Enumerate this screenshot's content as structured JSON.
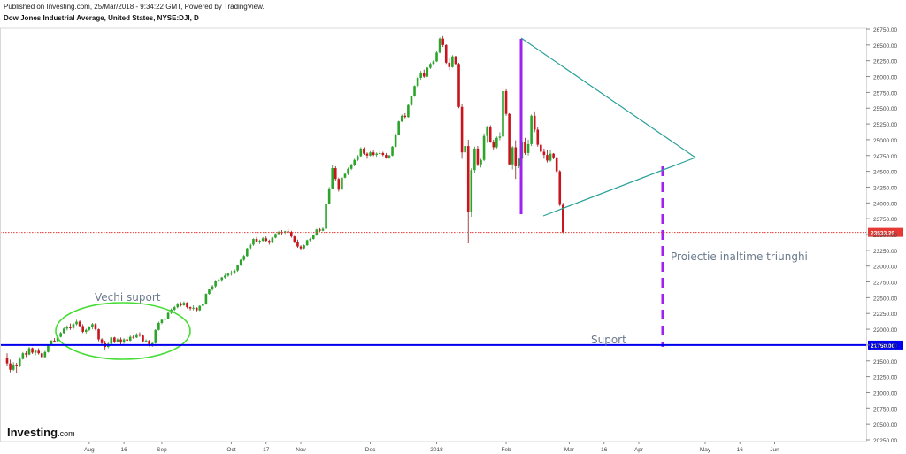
{
  "header": {
    "published": "Published on Investing.com, 25/Mar/2018 - 9:34:22 GMT, Powered by TradingView.",
    "symbol": "Dow Jones Industrial Average, United States, NYSE:DJI, D"
  },
  "logo": {
    "text": "Investing",
    "suffix": ".com"
  },
  "chart_data": {
    "type": "candlestick",
    "ylim": [
      20250,
      26750
    ],
    "y_ticks": [
      26750,
      26500,
      26250,
      26000,
      25750,
      25500,
      25250,
      25000,
      24750,
      24500,
      24250,
      24000,
      23750,
      23500,
      23250,
      23000,
      22750,
      22500,
      22250,
      22000,
      21750,
      21500,
      21250,
      21000,
      20750,
      20500,
      20250
    ],
    "y_tick_labels": [
      "26750.00",
      "26500.00",
      "26250.00",
      "26000.00",
      "25750.00",
      "25500.00",
      "25250.00",
      "25000.00",
      "24750.00",
      "24500.00",
      "24250.00",
      "24000.00",
      "23750.00",
      "23500.00",
      "23250.00",
      "23000.00",
      "22750.00",
      "22500.00",
      "22250.00",
      "22000.00",
      "21750.00",
      "21500.00",
      "21250.00",
      "21000.00",
      "20750.00",
      "20500.00",
      "20250.00"
    ],
    "x_ticks": [
      {
        "day": 26,
        "label": "Aug"
      },
      {
        "day": 37,
        "label": "16"
      },
      {
        "day": 49,
        "label": "Sep"
      },
      {
        "day": 71,
        "label": "Oct"
      },
      {
        "day": 82,
        "label": "17"
      },
      {
        "day": 93,
        "label": "Nov"
      },
      {
        "day": 115,
        "label": "Dec"
      },
      {
        "day": 136,
        "label": "2018"
      },
      {
        "day": 158,
        "label": "Feb"
      },
      {
        "day": 178,
        "label": "Mar"
      },
      {
        "day": 189,
        "label": "16"
      },
      {
        "day": 200,
        "label": "Apr"
      },
      {
        "day": 221,
        "label": "May"
      },
      {
        "day": 232,
        "label": "16"
      },
      {
        "day": 243,
        "label": "Jun"
      }
    ],
    "x_range": [
      0,
      248
    ],
    "price_lines": [
      {
        "value": 23533.29,
        "label": "23533.29",
        "color": "#e53935",
        "style": "dotted"
      },
      {
        "value": 21750.0,
        "label": "21750.00",
        "color": "#0000ee",
        "style": "solid"
      }
    ],
    "annotations": {
      "old_support": "Vechi suport",
      "support": "Suport",
      "projection": "Proiectie inaltime triunghi"
    },
    "candles": [
      [
        0,
        21550,
        21620,
        21420,
        21460
      ],
      [
        1,
        21460,
        21520,
        21320,
        21360
      ],
      [
        2,
        21360,
        21480,
        21340,
        21440
      ],
      [
        3,
        21440,
        21470,
        21300,
        21420
      ],
      [
        4,
        21420,
        21560,
        21400,
        21530
      ],
      [
        5,
        21530,
        21640,
        21520,
        21620
      ],
      [
        6,
        21620,
        21650,
        21560,
        21600
      ],
      [
        7,
        21600,
        21720,
        21590,
        21700
      ],
      [
        8,
        21700,
        21710,
        21610,
        21630
      ],
      [
        9,
        21630,
        21680,
        21590,
        21660
      ],
      [
        10,
        21660,
        21700,
        21600,
        21620
      ],
      [
        11,
        21620,
        21650,
        21540,
        21560
      ],
      [
        12,
        21560,
        21660,
        21550,
        21640
      ],
      [
        13,
        21640,
        21760,
        21630,
        21750
      ],
      [
        14,
        21750,
        21830,
        21740,
        21820
      ],
      [
        15,
        21820,
        21860,
        21790,
        21810
      ],
      [
        16,
        21810,
        21900,
        21800,
        21880
      ],
      [
        17,
        21880,
        21960,
        21870,
        21940
      ],
      [
        18,
        21940,
        22030,
        21930,
        22010
      ],
      [
        19,
        22010,
        22060,
        21980,
        22030
      ],
      [
        20,
        22030,
        22090,
        21990,
        22020
      ],
      [
        21,
        22020,
        22100,
        22000,
        22080
      ],
      [
        22,
        22080,
        22150,
        22060,
        22120
      ],
      [
        23,
        22120,
        22140,
        22030,
        22050
      ],
      [
        24,
        22050,
        22080,
        21940,
        21960
      ],
      [
        25,
        21960,
        22010,
        21930,
        21990
      ],
      [
        26,
        21990,
        22050,
        21970,
        22030
      ],
      [
        27,
        22030,
        22100,
        22000,
        22080
      ],
      [
        28,
        22080,
        22100,
        21980,
        22000
      ],
      [
        29,
        22000,
        22010,
        21810,
        21840
      ],
      [
        30,
        21840,
        21860,
        21760,
        21780
      ],
      [
        31,
        21780,
        21820,
        21680,
        21720
      ],
      [
        32,
        21720,
        21790,
        21700,
        21770
      ],
      [
        33,
        21770,
        21880,
        21760,
        21870
      ],
      [
        34,
        21870,
        21880,
        21780,
        21800
      ],
      [
        35,
        21800,
        21860,
        21790,
        21840
      ],
      [
        36,
        21840,
        21870,
        21760,
        21790
      ],
      [
        37,
        21790,
        21860,
        21770,
        21840
      ],
      [
        38,
        21840,
        21890,
        21800,
        21820
      ],
      [
        39,
        21820,
        21900,
        21810,
        21880
      ],
      [
        40,
        21880,
        21910,
        21850,
        21870
      ],
      [
        41,
        21870,
        21940,
        21860,
        21920
      ],
      [
        42,
        21920,
        21950,
        21880,
        21900
      ],
      [
        43,
        21900,
        21920,
        21790,
        21810
      ],
      [
        44,
        21810,
        21840,
        21790,
        21820
      ],
      [
        45,
        21820,
        21830,
        21730,
        21760
      ],
      [
        46,
        21760,
        21790,
        21720,
        21780
      ],
      [
        47,
        21780,
        22000,
        21770,
        21990
      ],
      [
        48,
        21990,
        22120,
        21980,
        22100
      ],
      [
        49,
        22100,
        22160,
        22080,
        22150
      ],
      [
        50,
        22150,
        22200,
        22130,
        22170
      ],
      [
        51,
        22170,
        22270,
        22160,
        22260
      ],
      [
        52,
        22260,
        22330,
        22240,
        22310
      ],
      [
        53,
        22310,
        22370,
        22290,
        22350
      ],
      [
        54,
        22350,
        22420,
        22330,
        22400
      ],
      [
        55,
        22400,
        22430,
        22360,
        22380
      ],
      [
        56,
        22380,
        22440,
        22370,
        22420
      ],
      [
        57,
        22420,
        22430,
        22330,
        22350
      ],
      [
        58,
        22350,
        22360,
        22300,
        22330
      ],
      [
        59,
        22330,
        22380,
        22300,
        22340
      ],
      [
        60,
        22340,
        22350,
        22280,
        22300
      ],
      [
        61,
        22300,
        22380,
        22290,
        22370
      ],
      [
        62,
        22370,
        22420,
        22360,
        22400
      ],
      [
        63,
        22400,
        22570,
        22390,
        22560
      ],
      [
        64,
        22560,
        22640,
        22550,
        22630
      ],
      [
        65,
        22630,
        22700,
        22610,
        22680
      ],
      [
        66,
        22680,
        22780,
        22660,
        22770
      ],
      [
        67,
        22770,
        22800,
        22740,
        22780
      ],
      [
        68,
        22780,
        22830,
        22750,
        22820
      ],
      [
        69,
        22820,
        22880,
        22800,
        22850
      ],
      [
        70,
        22850,
        22900,
        22830,
        22880
      ],
      [
        71,
        22880,
        22930,
        22850,
        22900
      ],
      [
        72,
        22900,
        22950,
        22870,
        22930
      ],
      [
        73,
        22930,
        23020,
        22910,
        23010
      ],
      [
        74,
        23010,
        23110,
        23000,
        23100
      ],
      [
        75,
        23100,
        23180,
        23080,
        23160
      ],
      [
        76,
        23160,
        23290,
        23150,
        23280
      ],
      [
        77,
        23280,
        23360,
        23250,
        23340
      ],
      [
        78,
        23340,
        23440,
        23320,
        23430
      ],
      [
        79,
        23430,
        23460,
        23370,
        23390
      ],
      [
        80,
        23390,
        23420,
        23350,
        23400
      ],
      [
        81,
        23400,
        23460,
        23390,
        23440
      ],
      [
        82,
        23440,
        23470,
        23380,
        23400
      ],
      [
        83,
        23400,
        23420,
        23340,
        23370
      ],
      [
        84,
        23370,
        23460,
        23360,
        23450
      ],
      [
        85,
        23450,
        23520,
        23440,
        23510
      ],
      [
        86,
        23510,
        23560,
        23490,
        23540
      ],
      [
        87,
        23540,
        23570,
        23500,
        23530
      ],
      [
        88,
        23530,
        23560,
        23510,
        23550
      ],
      [
        89,
        23550,
        23590,
        23520,
        23540
      ],
      [
        90,
        23540,
        23560,
        23450,
        23470
      ],
      [
        91,
        23470,
        23480,
        23360,
        23380
      ],
      [
        92,
        23380,
        23420,
        23290,
        23310
      ],
      [
        93,
        23310,
        23330,
        23260,
        23280
      ],
      [
        94,
        23280,
        23340,
        23270,
        23330
      ],
      [
        95,
        23330,
        23420,
        23320,
        23410
      ],
      [
        96,
        23410,
        23450,
        23380,
        23430
      ],
      [
        97,
        23430,
        23500,
        23420,
        23490
      ],
      [
        98,
        23490,
        23590,
        23480,
        23580
      ],
      [
        99,
        23580,
        23600,
        23540,
        23560
      ],
      [
        100,
        23560,
        23620,
        23550,
        23590
      ],
      [
        101,
        23590,
        24000,
        23580,
        23990
      ],
      [
        102,
        23990,
        24250,
        23980,
        24230
      ],
      [
        103,
        24230,
        24600,
        24220,
        24550
      ],
      [
        104,
        24550,
        24580,
        24350,
        24380
      ],
      [
        105,
        24380,
        24400,
        24180,
        24210
      ],
      [
        106,
        24210,
        24420,
        24200,
        24400
      ],
      [
        107,
        24400,
        24480,
        24390,
        24460
      ],
      [
        108,
        24460,
        24560,
        24440,
        24540
      ],
      [
        109,
        24540,
        24620,
        24520,
        24600
      ],
      [
        110,
        24600,
        24700,
        24580,
        24680
      ],
      [
        111,
        24680,
        24760,
        24660,
        24740
      ],
      [
        112,
        24740,
        24880,
        24730,
        24860
      ],
      [
        113,
        24860,
        24880,
        24760,
        24780
      ],
      [
        114,
        24780,
        24800,
        24700,
        24750
      ],
      [
        115,
        24750,
        24820,
        24740,
        24800
      ],
      [
        116,
        24800,
        24830,
        24740,
        24760
      ],
      [
        117,
        24760,
        24800,
        24730,
        24780
      ],
      [
        118,
        24780,
        24820,
        24750,
        24790
      ],
      [
        119,
        24790,
        24810,
        24740,
        24760
      ],
      [
        120,
        24760,
        24790,
        24700,
        24720
      ],
      [
        121,
        24720,
        24760,
        24700,
        24750
      ],
      [
        122,
        24750,
        24900,
        24740,
        24890
      ],
      [
        123,
        24890,
        25100,
        24880,
        25080
      ],
      [
        124,
        25080,
        25300,
        25070,
        25290
      ],
      [
        125,
        25290,
        25400,
        25280,
        25380
      ],
      [
        126,
        25380,
        25420,
        25340,
        25360
      ],
      [
        127,
        25360,
        25560,
        25350,
        25550
      ],
      [
        128,
        25550,
        25700,
        25530,
        25690
      ],
      [
        129,
        25690,
        25860,
        25680,
        25850
      ],
      [
        130,
        25850,
        26000,
        25830,
        25980
      ],
      [
        131,
        25980,
        26090,
        25950,
        26060
      ],
      [
        132,
        26060,
        26110,
        25980,
        26000
      ],
      [
        133,
        26000,
        26150,
        25990,
        26140
      ],
      [
        134,
        26140,
        26220,
        26120,
        26200
      ],
      [
        135,
        26200,
        26260,
        26180,
        26240
      ],
      [
        136,
        26240,
        26400,
        26230,
        26380
      ],
      [
        137,
        26380,
        26620,
        26370,
        26600
      ],
      [
        138,
        26600,
        26640,
        26470,
        26500
      ],
      [
        139,
        26500,
        26510,
        26200,
        26220
      ],
      [
        140,
        26220,
        26290,
        26100,
        26150
      ],
      [
        141,
        26150,
        26340,
        26140,
        26320
      ],
      [
        142,
        26320,
        26330,
        26180,
        26200
      ],
      [
        143,
        26200,
        26220,
        25500,
        25520
      ],
      [
        144,
        25520,
        25560,
        24700,
        24800
      ],
      [
        145,
        24800,
        25060,
        24300,
        24900
      ],
      [
        146,
        24900,
        25000,
        23360,
        23860
      ],
      [
        147,
        23860,
        24550,
        23780,
        24520
      ],
      [
        148,
        24520,
        24890,
        24480,
        24860
      ],
      [
        149,
        24860,
        24900,
        24580,
        24610
      ],
      [
        150,
        24610,
        24700,
        24560,
        24680
      ],
      [
        151,
        24680,
        25100,
        24660,
        25060
      ],
      [
        152,
        25060,
        25220,
        24950,
        25200
      ],
      [
        153,
        25200,
        25230,
        24950,
        24970
      ],
      [
        154,
        24970,
        25000,
        24840,
        24880
      ],
      [
        155,
        24880,
        25050,
        24860,
        25030
      ],
      [
        156,
        25030,
        25120,
        24990,
        25050
      ],
      [
        157,
        25050,
        25790,
        25040,
        25770
      ],
      [
        158,
        25770,
        25800,
        25380,
        25410
      ],
      [
        159,
        25410,
        25420,
        24600,
        24610
      ],
      [
        160,
        24610,
        24900,
        24530,
        24880
      ],
      [
        161,
        24880,
        24990,
        24380,
        24580
      ],
      [
        162,
        24580,
        24720,
        24550,
        24700
      ],
      [
        163,
        24700,
        24980,
        24680,
        24960
      ],
      [
        164,
        24960,
        25030,
        24760,
        24790
      ],
      [
        165,
        24790,
        25000,
        24750,
        24930
      ],
      [
        166,
        24930,
        25400,
        24900,
        25380
      ],
      [
        167,
        25380,
        25450,
        25120,
        25160
      ],
      [
        168,
        25160,
        25200,
        24890,
        24920
      ],
      [
        169,
        24920,
        24980,
        24780,
        24810
      ],
      [
        170,
        24810,
        24860,
        24700,
        24760
      ],
      [
        171,
        24760,
        24830,
        24640,
        24670
      ],
      [
        172,
        24670,
        24830,
        24650,
        24780
      ],
      [
        173,
        24780,
        24790,
        24690,
        24720
      ],
      [
        174,
        24720,
        24730,
        24470,
        24500
      ],
      [
        175,
        24500,
        24520,
        23950,
        23970
      ],
      [
        176,
        23970,
        24000,
        23520,
        23533
      ]
    ]
  }
}
